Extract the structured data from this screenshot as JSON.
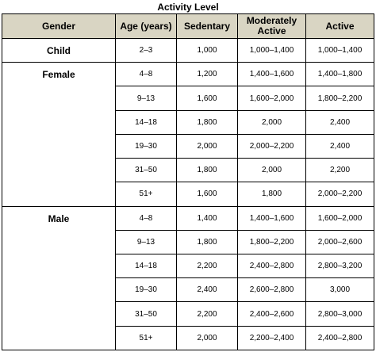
{
  "caption": "Activity Level",
  "headers": {
    "gender": "Gender",
    "age": "Age (years)",
    "sedentary": "Sedentary",
    "moderately_active": "Moderately Active",
    "active": "Active"
  },
  "groups": [
    {
      "gender": "Child",
      "rows": [
        {
          "age": "2–3",
          "sedentary": "1,000",
          "moderate": "1,000–1,400",
          "active": "1,000–1,400"
        }
      ]
    },
    {
      "gender": "Female",
      "rows": [
        {
          "age": "4–8",
          "sedentary": "1,200",
          "moderate": "1,400–1,600",
          "active": "1,400–1,800"
        },
        {
          "age": "9–13",
          "sedentary": "1,600",
          "moderate": "1,600–2,000",
          "active": "1,800–2,200"
        },
        {
          "age": "14–18",
          "sedentary": "1,800",
          "moderate": "2,000",
          "active": "2,400"
        },
        {
          "age": "19–30",
          "sedentary": "2,000",
          "moderate": "2,000–2,200",
          "active": "2,400"
        },
        {
          "age": "31–50",
          "sedentary": "1,800",
          "moderate": "2,000",
          "active": "2,200"
        },
        {
          "age": "51+",
          "sedentary": "1,600",
          "moderate": "1,800",
          "active": "2,000–2,200"
        }
      ]
    },
    {
      "gender": "Male",
      "rows": [
        {
          "age": "4–8",
          "sedentary": "1,400",
          "moderate": "1,400–1,600",
          "active": "1,600–2,000"
        },
        {
          "age": "9–13",
          "sedentary": "1,800",
          "moderate": "1,800–2,200",
          "active": "2,000–2,600"
        },
        {
          "age": "14–18",
          "sedentary": "2,200",
          "moderate": "2,400–2,800",
          "active": "2,800–3,200"
        },
        {
          "age": "19–30",
          "sedentary": "2,400",
          "moderate": "2,600–2,800",
          "active": "3,000"
        },
        {
          "age": "31–50",
          "sedentary": "2,200",
          "moderate": "2,400–2,600",
          "active": "2,800–3,000"
        },
        {
          "age": "51+",
          "sedentary": "2,000",
          "moderate": "2,200–2,400",
          "active": "2,400–2,800"
        }
      ]
    }
  ]
}
